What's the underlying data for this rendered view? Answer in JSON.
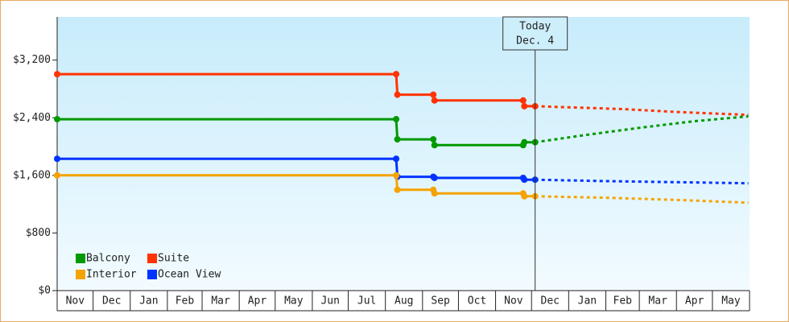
{
  "chart_data": {
    "type": "line",
    "title": "",
    "xlabel": "",
    "ylabel": "",
    "ylim": [
      0,
      3800
    ],
    "x_range": [
      "2015-11-01",
      "2017-05-31"
    ],
    "y_ticks": [
      0,
      800,
      1600,
      2400,
      3200
    ],
    "y_tick_labels": [
      "$0",
      "$800",
      "$1,600",
      "$2,400",
      "$3,200"
    ],
    "month_labels": [
      "Nov",
      "Dec",
      "Jan",
      "Feb",
      "Mar",
      "Apr",
      "May",
      "Jun",
      "Jul",
      "Aug",
      "Sep",
      "Oct",
      "Nov",
      "Dec",
      "Jan",
      "Feb",
      "Mar",
      "Apr",
      "May"
    ],
    "today": {
      "line1": "Today",
      "line2": "Dec. 4",
      "date": "2016-12-04"
    },
    "grid": false,
    "legend_position": "bottom-left",
    "legend_layout": [
      [
        "Balcony",
        "Suite"
      ],
      [
        "Interior",
        "Ocean View"
      ]
    ],
    "series": [
      {
        "name": "Suite",
        "color": "#ff3300",
        "style": "step",
        "points": [
          [
            "2015-11-01",
            3005
          ],
          [
            "2016-08-10",
            3005
          ],
          [
            "2016-08-11",
            2720
          ],
          [
            "2016-09-10",
            2720
          ],
          [
            "2016-09-11",
            2640
          ],
          [
            "2016-11-24",
            2640
          ],
          [
            "2016-11-25",
            2560
          ],
          [
            "2016-12-04",
            2560
          ]
        ],
        "markers": [
          "2015-11-01",
          "2016-08-10",
          "2016-08-11",
          "2016-09-10",
          "2016-09-11",
          "2016-11-24",
          "2016-11-25",
          "2016-12-04"
        ],
        "forecast": [
          [
            "2016-12-04",
            2560
          ],
          [
            "2017-02-15",
            2520
          ],
          [
            "2017-04-01",
            2480
          ],
          [
            "2017-05-31",
            2440
          ]
        ]
      },
      {
        "name": "Balcony",
        "color": "#009900",
        "style": "step",
        "points": [
          [
            "2015-11-01",
            2380
          ],
          [
            "2016-08-10",
            2380
          ],
          [
            "2016-08-11",
            2100
          ],
          [
            "2016-09-10",
            2100
          ],
          [
            "2016-09-11",
            2020
          ],
          [
            "2016-11-24",
            2020
          ],
          [
            "2016-11-25",
            2060
          ],
          [
            "2016-12-04",
            2060
          ]
        ],
        "markers": [
          "2015-11-01",
          "2016-08-10",
          "2016-08-11",
          "2016-09-10",
          "2016-09-11",
          "2016-11-24",
          "2016-11-25",
          "2016-12-04"
        ],
        "forecast": [
          [
            "2016-12-04",
            2060
          ],
          [
            "2017-01-15",
            2160
          ],
          [
            "2017-03-01",
            2260
          ],
          [
            "2017-04-15",
            2350
          ],
          [
            "2017-05-31",
            2420
          ]
        ]
      },
      {
        "name": "Ocean View",
        "color": "#0033ff",
        "style": "step",
        "points": [
          [
            "2015-11-01",
            1830
          ],
          [
            "2016-08-10",
            1830
          ],
          [
            "2016-08-11",
            1580
          ],
          [
            "2016-09-10",
            1580
          ],
          [
            "2016-09-11",
            1565
          ],
          [
            "2016-11-24",
            1565
          ],
          [
            "2016-11-25",
            1540
          ],
          [
            "2016-12-04",
            1540
          ]
        ],
        "markers": [
          "2015-11-01",
          "2016-08-10",
          "2016-08-11",
          "2016-09-10",
          "2016-09-11",
          "2016-11-24",
          "2016-11-25",
          "2016-12-04"
        ],
        "forecast": [
          [
            "2016-12-04",
            1540
          ],
          [
            "2017-02-01",
            1520
          ],
          [
            "2017-04-01",
            1505
          ],
          [
            "2017-05-31",
            1490
          ]
        ]
      },
      {
        "name": "Interior",
        "color": "#f5a300",
        "style": "step",
        "points": [
          [
            "2015-11-01",
            1600
          ],
          [
            "2016-08-10",
            1600
          ],
          [
            "2016-08-11",
            1400
          ],
          [
            "2016-09-10",
            1400
          ],
          [
            "2016-09-11",
            1350
          ],
          [
            "2016-11-24",
            1350
          ],
          [
            "2016-11-25",
            1310
          ],
          [
            "2016-12-04",
            1310
          ]
        ],
        "markers": [
          "2015-11-01",
          "2016-08-10",
          "2016-08-11",
          "2016-09-10",
          "2016-09-11",
          "2016-11-24",
          "2016-11-25",
          "2016-12-04"
        ],
        "forecast": [
          [
            "2016-12-04",
            1310
          ],
          [
            "2017-02-01",
            1290
          ],
          [
            "2017-04-01",
            1260
          ],
          [
            "2017-05-31",
            1220
          ]
        ]
      }
    ]
  }
}
